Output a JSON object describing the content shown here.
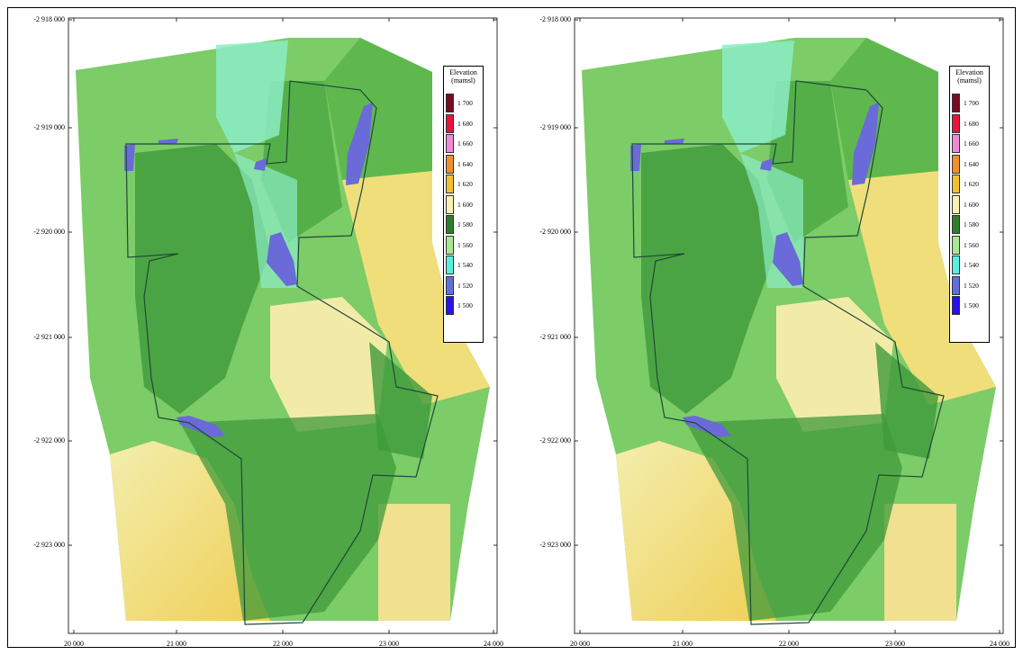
{
  "maps": [
    {
      "x_ticks": [
        "20 000",
        "21 000",
        "22 000",
        "23 000",
        "24 000"
      ],
      "y_ticks": [
        "-2 918 000",
        "-2 919 000",
        "-2 920 000",
        "-2 921 000",
        "-2 922 000",
        "-2 923 000"
      ],
      "legend": {
        "title_line1": "Elevation",
        "title_line2": "(mamsl)",
        "items": [
          {
            "label": "1 700",
            "color": "#7a0a22"
          },
          {
            "label": "1 680",
            "color": "#e8143c"
          },
          {
            "label": "1 660",
            "color": "#f08ad8"
          },
          {
            "label": "1 640",
            "color": "#f0902c"
          },
          {
            "label": "1 620",
            "color": "#f2c030"
          },
          {
            "label": "1 600",
            "color": "#f6f2b0"
          },
          {
            "label": "1 580",
            "color": "#2e7d2a"
          },
          {
            "label": "1 560",
            "color": "#a8e894"
          },
          {
            "label": "1 540",
            "color": "#58f0e0"
          },
          {
            "label": "1 520",
            "color": "#6070d8"
          },
          {
            "label": "1 500",
            "color": "#2a10ec"
          }
        ]
      }
    },
    {
      "x_ticks": [
        "20 000",
        "21 000",
        "22 000",
        "23 000",
        "24 000"
      ],
      "y_ticks": [
        "-2 918 000",
        "-2 919 000",
        "-2 920 000",
        "-2 921 000",
        "-2 922 000",
        "-2 923 000"
      ],
      "legend": {
        "title_line1": "Elevation",
        "title_line2": "(mamsl)",
        "items": [
          {
            "label": "1 700",
            "color": "#7a0a22"
          },
          {
            "label": "1 680",
            "color": "#e8143c"
          },
          {
            "label": "1 660",
            "color": "#f08ad8"
          },
          {
            "label": "1 640",
            "color": "#f0902c"
          },
          {
            "label": "1 620",
            "color": "#f2c030"
          },
          {
            "label": "1 600",
            "color": "#f6f2b0"
          },
          {
            "label": "1 580",
            "color": "#2e7d2a"
          },
          {
            "label": "1 560",
            "color": "#a8e894"
          },
          {
            "label": "1 540",
            "color": "#58f0e0"
          },
          {
            "label": "1 520",
            "color": "#6070d8"
          },
          {
            "label": "1 500",
            "color": "#2a10ec"
          }
        ]
      }
    }
  ],
  "colors": {
    "terrain_dark_green": "#3f9a3a",
    "terrain_green": "#6dc25e",
    "terrain_light_green": "#a8e294",
    "terrain_cyan": "#7ef0d0",
    "terrain_yellow": "#efd76a",
    "terrain_light_yellow": "#f3eeae",
    "pit_water": "#6a6ad8",
    "boundary": "#1f4a3a"
  }
}
